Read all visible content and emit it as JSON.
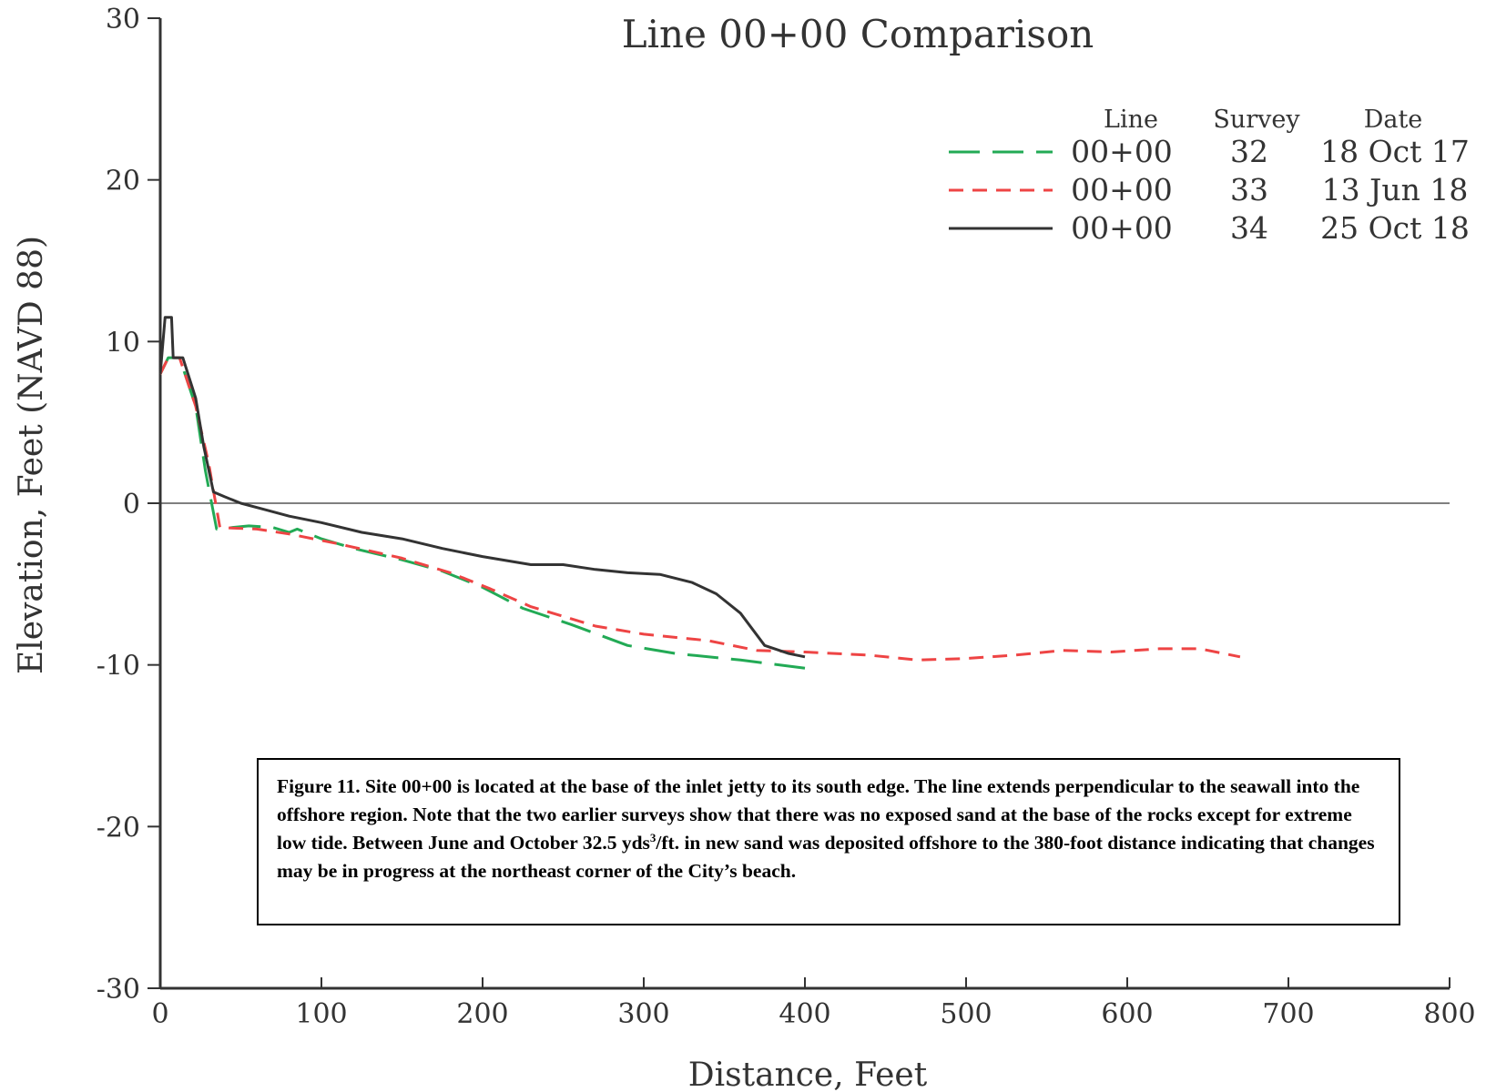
{
  "chart_data": {
    "type": "line",
    "title": "Line 00+00 Comparison",
    "xlabel": "Distance, Feet",
    "ylabel": "Elevation, Feet (NAVD 88)",
    "xlim": [
      0,
      800
    ],
    "ylim": [
      -30,
      30
    ],
    "xticks": [
      0,
      100,
      200,
      300,
      400,
      500,
      600,
      700,
      800
    ],
    "yticks": [
      30,
      20,
      10,
      0,
      -10,
      -20,
      -30
    ],
    "zero_line": true,
    "legend": {
      "placement": "top-right",
      "headers": {
        "line": "Line",
        "survey": "Survey",
        "date": "Date"
      }
    },
    "series": [
      {
        "line": "00+00",
        "survey": "32",
        "date": "18 Oct 17",
        "color": "#22aa55",
        "style": "long-dash",
        "points": [
          [
            0,
            8
          ],
          [
            5,
            9
          ],
          [
            12,
            9
          ],
          [
            22,
            6
          ],
          [
            28,
            2
          ],
          [
            35,
            -1.6
          ],
          [
            55,
            -1.4
          ],
          [
            70,
            -1.5
          ],
          [
            80,
            -1.8
          ],
          [
            85,
            -1.6
          ],
          [
            100,
            -2.2
          ],
          [
            120,
            -2.8
          ],
          [
            150,
            -3.5
          ],
          [
            175,
            -4.2
          ],
          [
            200,
            -5.2
          ],
          [
            225,
            -6.5
          ],
          [
            255,
            -7.5
          ],
          [
            290,
            -8.8
          ],
          [
            320,
            -9.3
          ],
          [
            360,
            -9.7
          ],
          [
            400,
            -10.2
          ]
        ]
      },
      {
        "line": "00+00",
        "survey": "33",
        "date": "13 Jun 18",
        "color": "#ee4444",
        "style": "short-dash",
        "points": [
          [
            0,
            8
          ],
          [
            5,
            9
          ],
          [
            12,
            9
          ],
          [
            22,
            6
          ],
          [
            30,
            2.5
          ],
          [
            37,
            -1.5
          ],
          [
            60,
            -1.6
          ],
          [
            80,
            -1.9
          ],
          [
            110,
            -2.5
          ],
          [
            150,
            -3.4
          ],
          [
            180,
            -4.3
          ],
          [
            205,
            -5.3
          ],
          [
            230,
            -6.4
          ],
          [
            270,
            -7.6
          ],
          [
            300,
            -8.1
          ],
          [
            340,
            -8.5
          ],
          [
            370,
            -9.1
          ],
          [
            400,
            -9.2
          ],
          [
            440,
            -9.4
          ],
          [
            470,
            -9.7
          ],
          [
            500,
            -9.6
          ],
          [
            530,
            -9.4
          ],
          [
            560,
            -9.1
          ],
          [
            590,
            -9.2
          ],
          [
            620,
            -9.0
          ],
          [
            645,
            -9.0
          ],
          [
            670,
            -9.5
          ]
        ]
      },
      {
        "line": "00+00",
        "survey": "34",
        "date": "25 Oct 18",
        "color": "#333333",
        "style": "solid",
        "points": [
          [
            0,
            8
          ],
          [
            3,
            11.5
          ],
          [
            7,
            11.5
          ],
          [
            8,
            9
          ],
          [
            14,
            9
          ],
          [
            22,
            6.5
          ],
          [
            27,
            3.5
          ],
          [
            33,
            0.7
          ],
          [
            40,
            0.4
          ],
          [
            50,
            0
          ],
          [
            65,
            -0.4
          ],
          [
            80,
            -0.8
          ],
          [
            100,
            -1.2
          ],
          [
            125,
            -1.8
          ],
          [
            150,
            -2.2
          ],
          [
            175,
            -2.8
          ],
          [
            200,
            -3.3
          ],
          [
            230,
            -3.8
          ],
          [
            250,
            -3.8
          ],
          [
            270,
            -4.1
          ],
          [
            290,
            -4.3
          ],
          [
            310,
            -4.4
          ],
          [
            330,
            -4.9
          ],
          [
            345,
            -5.6
          ],
          [
            360,
            -6.8
          ],
          [
            375,
            -8.8
          ],
          [
            390,
            -9.3
          ],
          [
            400,
            -9.5
          ]
        ]
      }
    ]
  },
  "caption": {
    "before_sup": "Figure 11.  Site 00+00 is located at the base of the inlet jetty to its south edge.  The line extends perpendicular to the seawall into the offshore region.  Note that the two earlier surveys show that there was no exposed sand at the base of the rocks except for extreme low tide.  Between June and October 32.5 yds",
    "sup": "3",
    "after_sup": "/ft. in new sand was deposited offshore to the 380-foot distance indicating that changes may be in progress at the northeast corner of the City’s beach."
  }
}
